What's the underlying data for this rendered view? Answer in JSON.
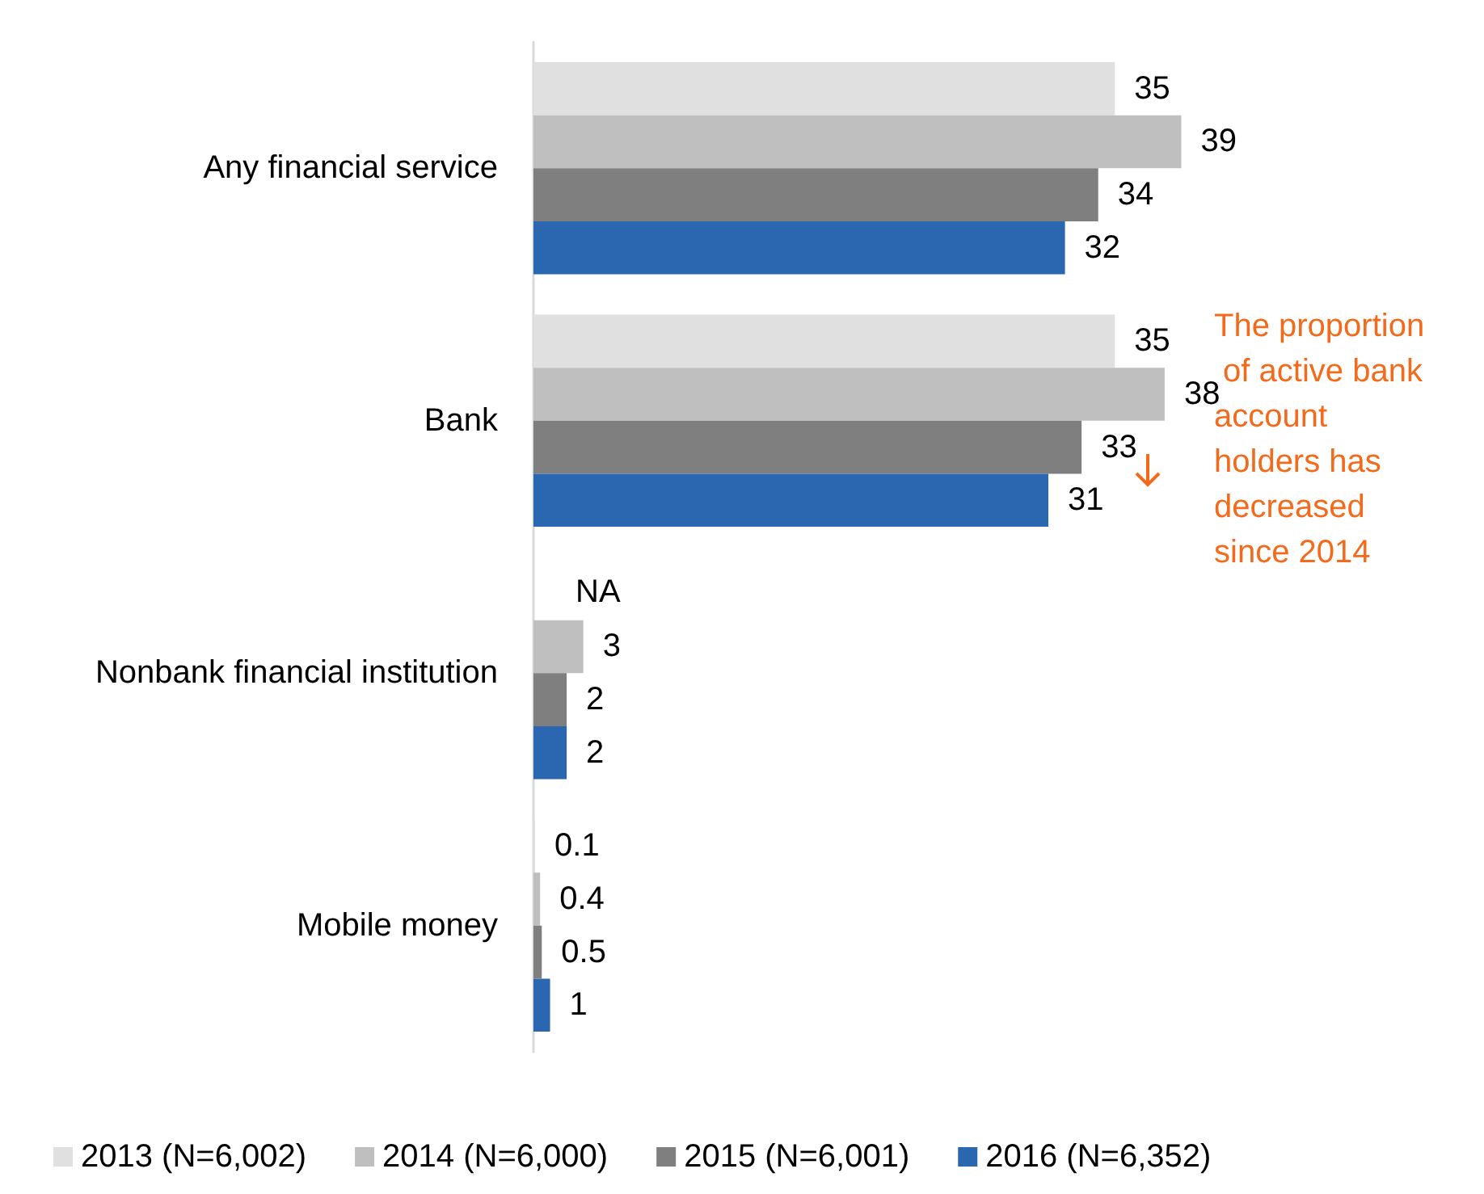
{
  "chart_data": {
    "type": "bar",
    "orientation": "horizontal",
    "categories": [
      "Any financial service",
      "Bank",
      "Nonbank financial institution",
      "Mobile money"
    ],
    "series": [
      {
        "name": "2013 (N=6,002)",
        "color": "#e0e0e0",
        "values": [
          35,
          35,
          null,
          0.1
        ],
        "value_labels": [
          "35",
          "35",
          "NA",
          "0.1"
        ]
      },
      {
        "name": "2014 (N=6,000)",
        "color": "#bfbfbf",
        "values": [
          39,
          38,
          3,
          0.4
        ]
      },
      {
        "name": "2015 (N=6,001)",
        "color": "#7f7f7f",
        "values": [
          34,
          33,
          2,
          0.5
        ]
      },
      {
        "name": "2016 (N=6,352)",
        "color": "#2a67b0",
        "values": [
          32,
          31,
          2,
          1
        ]
      }
    ],
    "data_labels": true,
    "legend": "bottom left",
    "annotations": [
      "The proportion of active bank account holders has decreased since 2014"
    ]
  }
}
